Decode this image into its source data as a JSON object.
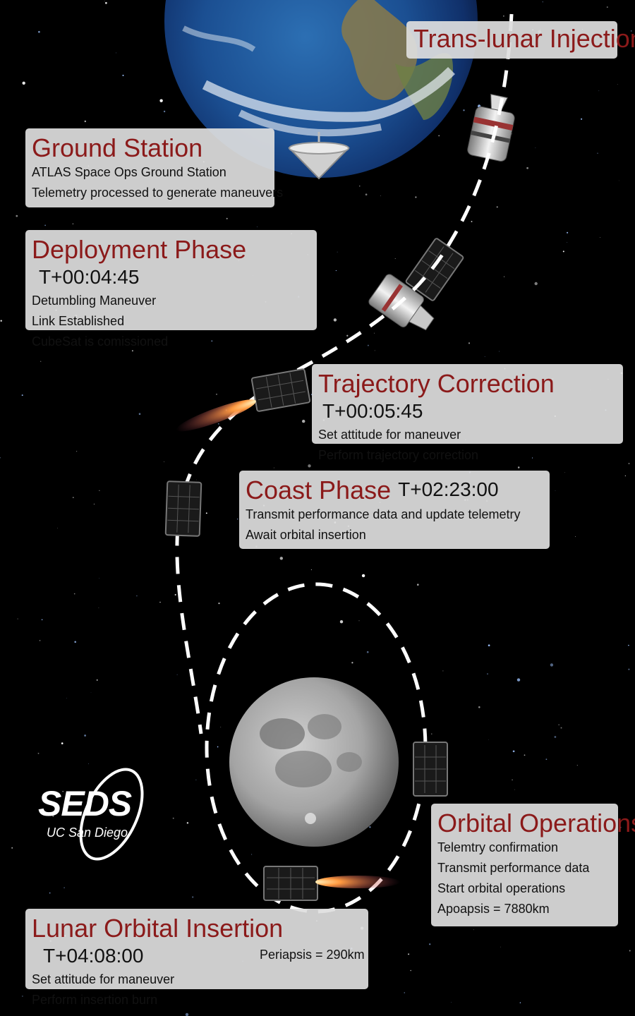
{
  "panels": {
    "tli": {
      "title": "Trans-lunar Injection"
    },
    "ground": {
      "title": "Ground Station",
      "lines": [
        "ATLAS Space Ops Ground Station",
        "Telemetry processed to generate maneuvers"
      ]
    },
    "deploy": {
      "title": "Deployment Phase",
      "time": "T+00:04:45",
      "lines": [
        "Detumbling Maneuver",
        "Link Established",
        "CubeSat is comissioned"
      ]
    },
    "trajectory": {
      "title": "Trajectory Correction",
      "time": "T+00:05:45",
      "lines": [
        "Set attitude for maneuver",
        "Perform trajectory correction"
      ]
    },
    "coast": {
      "title": "Coast Phase",
      "time": "T+02:23:00",
      "lines": [
        "Transmit performance data and update telemetry",
        "Await orbital insertion"
      ]
    },
    "orbital_ops": {
      "title": "Orbital Operations",
      "lines": [
        "Telemtry confirmation",
        "Transmit performance data",
        "Start orbital operations",
        "Apoapsis = 7880km"
      ]
    },
    "loi": {
      "title": "Lunar Orbital Insertion",
      "time": "T+04:08:00",
      "lines": [
        "Set attitude for maneuver",
        "Perform insertion burn"
      ],
      "side_note": "Periapsis = 290km"
    }
  },
  "logo": {
    "main": "SEDS",
    "sub": "UC San Diego"
  },
  "colors": {
    "title": "#8b1a1a",
    "panel_bg": "#dedede",
    "space": "#000000",
    "path": "#ffffff"
  },
  "icons": [
    "earth-icon",
    "moon-icon",
    "ground-antenna-icon",
    "rocket-stage-icon",
    "cubesat-icon",
    "thruster-plume-icon"
  ]
}
